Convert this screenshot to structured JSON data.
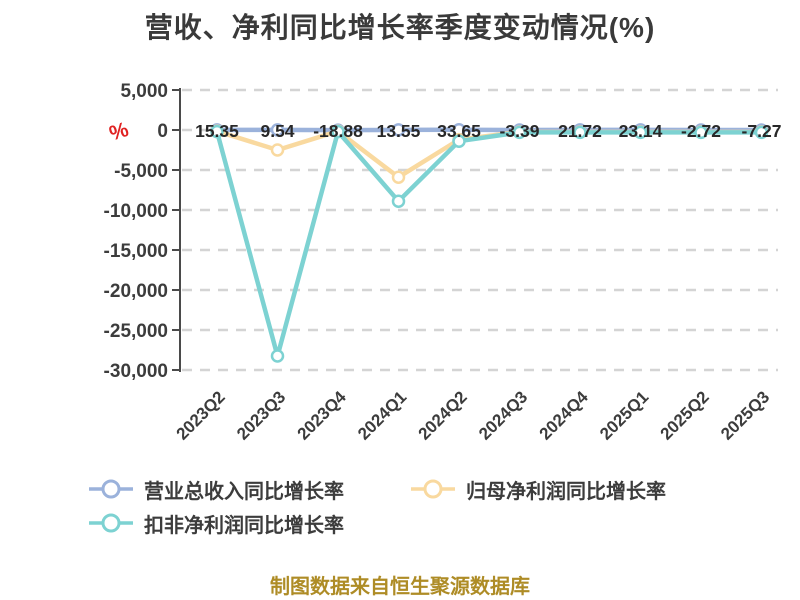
{
  "chart_data": {
    "type": "line",
    "title": "营收、净利同比增长率季度变动情况(%)",
    "y_unit": "%",
    "categories": [
      "2023Q2",
      "2023Q3",
      "2023Q4",
      "2024Q1",
      "2024Q2",
      "2024Q3",
      "2024Q4",
      "2025Q1",
      "2025Q2",
      "2025Q3"
    ],
    "series": [
      {
        "name": "营业总收入同比增长率",
        "color": "#9bb2db",
        "show_labels": true,
        "values": [
          15.35,
          9.54,
          -18.88,
          13.55,
          33.65,
          -3.39,
          21.72,
          23.14,
          -2.72,
          -7.27
        ]
      },
      {
        "name": "归母净利润同比增长率",
        "color": "#f9d99f",
        "show_labels": false,
        "values": [
          -150,
          -2500,
          -150,
          -5900,
          -1200,
          -250,
          -250,
          -250,
          -250,
          -250
        ]
      },
      {
        "name": "扣非净利润同比增长率",
        "color": "#7dd2d2",
        "show_labels": false,
        "values": [
          -200,
          -28250,
          -200,
          -8900,
          -1400,
          -300,
          -300,
          -300,
          -300,
          -300
        ]
      }
    ],
    "ylim": [
      -30000,
      5000
    ],
    "yticks": [
      5000,
      0,
      -5000,
      -10000,
      -15000,
      -20000,
      -25000,
      -30000
    ],
    "grid": "horizontal-dashed",
    "legend_position": "bottom"
  },
  "legend": {
    "items": [
      {
        "label": "营业总收入同比增长率",
        "color": "#9bb2db"
      },
      {
        "label": "归母净利润同比增长率",
        "color": "#f9d99f"
      },
      {
        "label": "扣非净利润同比增长率",
        "color": "#7dd2d2"
      }
    ]
  },
  "footer": {
    "source": "制图数据来自恒生聚源数据库"
  }
}
